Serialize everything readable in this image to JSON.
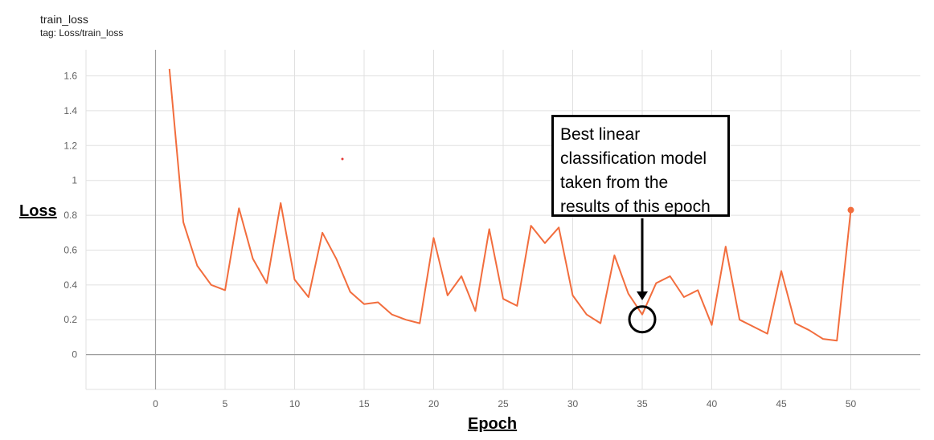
{
  "header": {
    "title": "train_loss",
    "tag": "tag: Loss/train_loss"
  },
  "colors": {
    "series": "#f26d3d",
    "grid": "#e0e0e0",
    "axis": "#9e9e9e"
  },
  "annotation": {
    "text": "Best linear classification model taken from the results of this epoch",
    "epoch": 35
  },
  "chart_data": {
    "type": "line",
    "title": "train_loss",
    "subtitle": "tag: Loss/train_loss",
    "xlabel": "Epoch",
    "ylabel": "Loss",
    "xlim": [
      -5,
      55
    ],
    "ylim": [
      -0.2,
      1.75
    ],
    "xticks": [
      0,
      5,
      10,
      15,
      20,
      25,
      30,
      35,
      40,
      45,
      50
    ],
    "yticks": [
      0,
      0.2,
      0.4,
      0.6,
      0.8,
      1,
      1.2,
      1.4,
      1.6
    ],
    "ytick_labels": [
      "0",
      "0.2",
      "0.4",
      "0.6",
      "0.8",
      "1",
      "1.2",
      "1.4",
      "1.6"
    ],
    "grid": true,
    "series": [
      {
        "x": [
          1,
          2,
          3,
          4,
          5,
          6,
          7,
          8,
          9,
          10,
          11,
          12,
          13,
          14,
          15,
          16,
          17,
          18,
          19,
          20,
          21,
          22,
          23,
          24,
          25,
          26,
          27,
          28,
          29,
          30,
          31,
          32,
          33,
          34,
          35,
          36,
          37,
          38,
          39,
          40,
          41,
          42,
          43,
          44,
          45,
          46,
          47,
          48,
          49,
          50
        ],
        "values": [
          1.64,
          0.76,
          0.51,
          0.4,
          0.37,
          0.84,
          0.55,
          0.41,
          0.87,
          0.43,
          0.33,
          0.7,
          0.55,
          0.36,
          0.29,
          0.3,
          0.23,
          0.2,
          0.18,
          0.67,
          0.34,
          0.45,
          0.25,
          0.72,
          0.32,
          0.28,
          0.74,
          0.64,
          0.73,
          0.34,
          0.23,
          0.18,
          0.57,
          0.35,
          0.23,
          0.41,
          0.45,
          0.33,
          0.37,
          0.17,
          0.62,
          0.2,
          0.16,
          0.12,
          0.48,
          0.18,
          0.14,
          0.09,
          0.08,
          0.83
        ]
      }
    ]
  }
}
